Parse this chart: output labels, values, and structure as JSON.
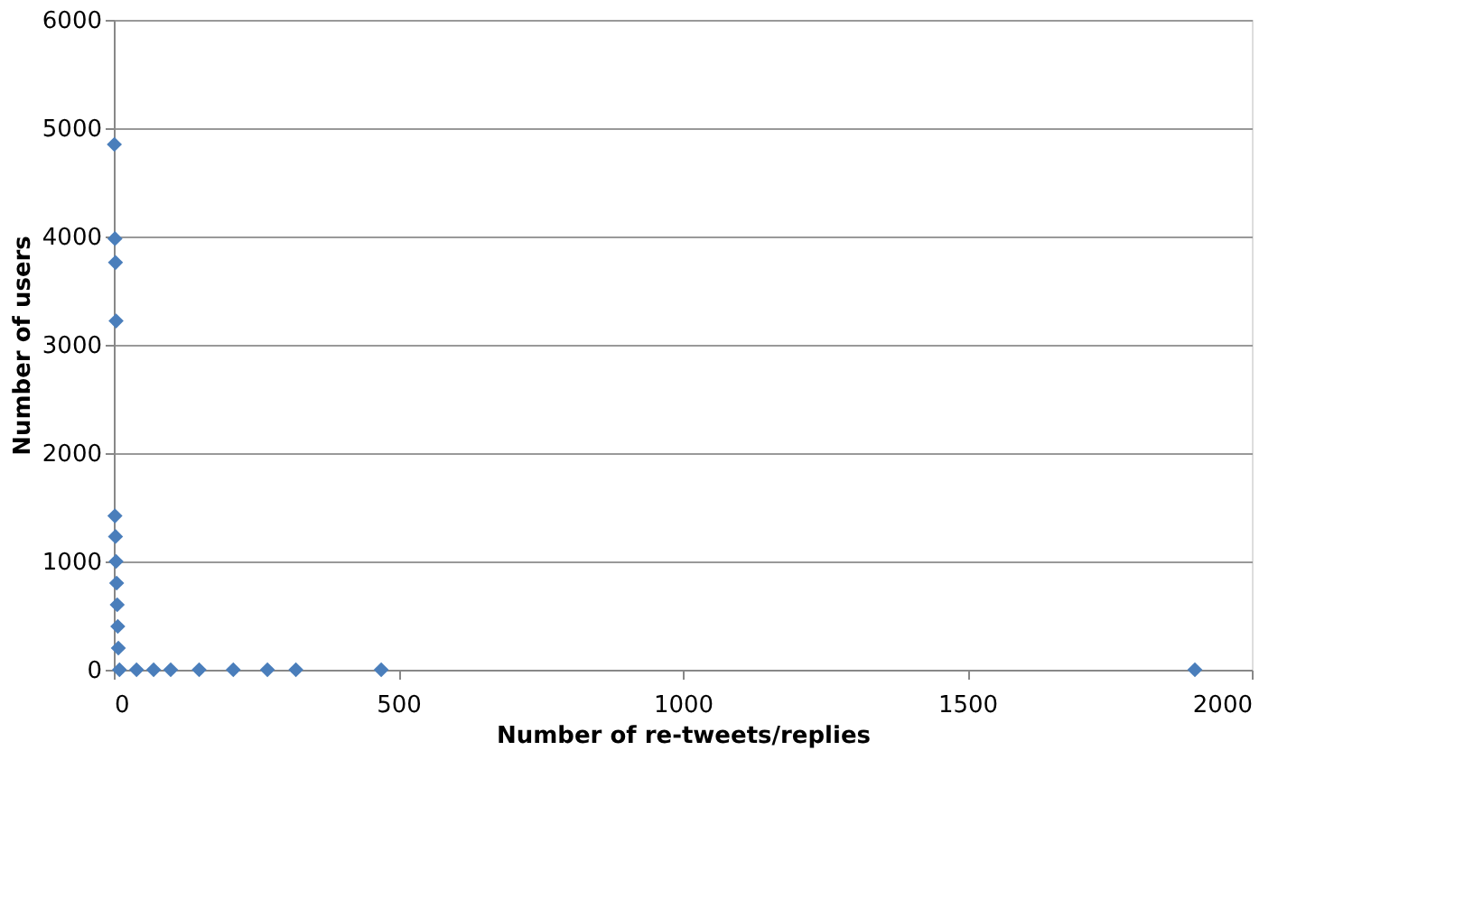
{
  "chart_data": {
    "type": "scatter",
    "xlabel": "Number of re-tweets/replies",
    "ylabel": "Number of users",
    "x": [
      1,
      2,
      3,
      4,
      2,
      3,
      4,
      5,
      6,
      7,
      8,
      10,
      40,
      70,
      100,
      150,
      210,
      270,
      320,
      470,
      1900
    ],
    "series": [
      {
        "color": "#4a7ebb",
        "values": [
          4850,
          3980,
          3760,
          3220,
          1420,
          1230,
          1000,
          800,
          600,
          400,
          200,
          0,
          0,
          0,
          0,
          0,
          0,
          0,
          0,
          0,
          0
        ]
      }
    ],
    "xlim": [
      0,
      2000
    ],
    "xticks": [
      0,
      500,
      {
        "value": 1000,
        "label": "1000"
      },
      {
        "value": 1500,
        "label": "1500"
      },
      {
        "value": 2000,
        "label": "2000"
      }
    ],
    "ylim": [
      0,
      6000
    ],
    "yticks": [
      0,
      {
        "value": 1000,
        "label": "1000"
      },
      {
        "value": 2000,
        "label": "2000"
      },
      {
        "value": 3000,
        "label": "3000"
      },
      {
        "value": 4000,
        "label": "4000"
      },
      {
        "value": 5000,
        "label": "5000"
      },
      {
        "value": 6000,
        "label": "6000"
      }
    ],
    "grid": "y",
    "marker": "diamond",
    "legend": false
  }
}
